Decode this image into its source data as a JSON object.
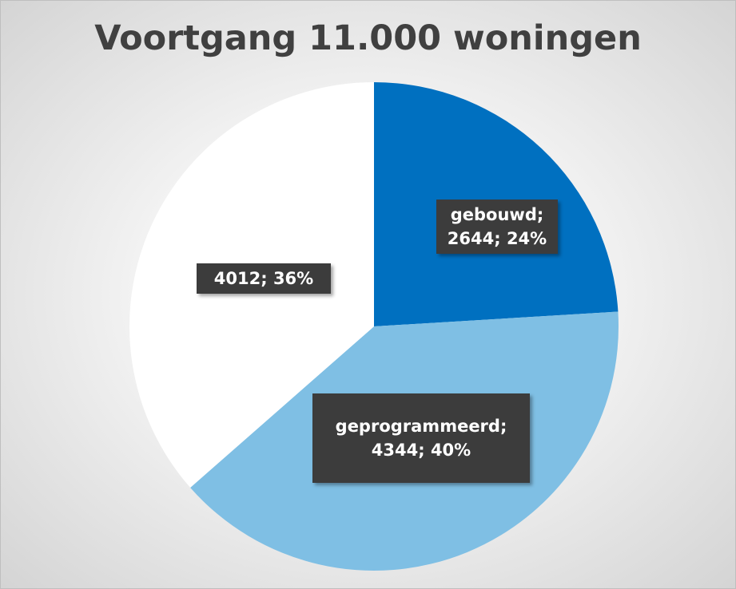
{
  "chart_data": {
    "type": "pie",
    "title": "Voortgang 11.000 woningen",
    "categories": [
      "gebouwd",
      "geprogrammeerd",
      null
    ],
    "values": [
      2644,
      4344,
      4012
    ],
    "value_labels": [
      "gebouwd; 2644; 24%",
      "geprogrammeerd; 4344; 40%",
      "4012; 36%"
    ],
    "colors": [
      "#0070c0",
      "#7fbfe4",
      "#ffffff"
    ]
  }
}
